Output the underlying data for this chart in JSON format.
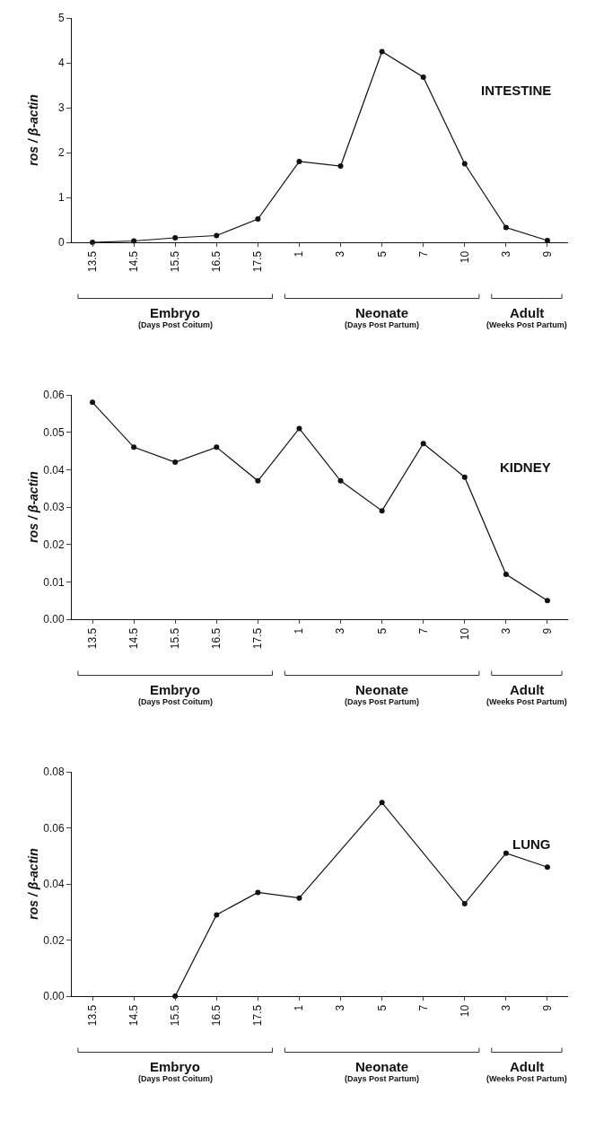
{
  "chart_data": [
    {
      "type": "line",
      "title": "INTESTINE",
      "ylabel": "ros / β-actin",
      "categories": [
        "13.5",
        "14.5",
        "15.5",
        "16.5",
        "17.5",
        "1",
        "3",
        "5",
        "7",
        "10",
        "3",
        "9"
      ],
      "series": [
        {
          "color": "#111111",
          "values": [
            0,
            0.03,
            0.1,
            0.15,
            0.52,
            1.8,
            1.7,
            4.25,
            3.68,
            1.75,
            0.33,
            0.04
          ]
        }
      ],
      "ylim": [
        0,
        5
      ],
      "yticks": [
        0,
        1,
        2,
        3,
        4,
        5
      ],
      "marker": "circle",
      "line_style": "solid",
      "annotations": [
        "Embryo",
        "(Days Post Coitum)",
        "Neonate",
        "(Days Post Partum)",
        "Adult",
        "(Weeks Post Partum)"
      ]
    },
    {
      "type": "line",
      "title": "KIDNEY",
      "ylabel": "ros / β-actin",
      "categories": [
        "13.5",
        "14.5",
        "15.5",
        "16.5",
        "17.5",
        "1",
        "3",
        "5",
        "7",
        "10",
        "3",
        "9"
      ],
      "series": [
        {
          "color": "#111111",
          "values": [
            0.058,
            0.046,
            0.042,
            0.046,
            0.037,
            0.051,
            0.037,
            0.029,
            0.047,
            0.038,
            0.012,
            0.005
          ]
        }
      ],
      "ylim": [
        0,
        0.06
      ],
      "yticks": [
        {
          "value": 0,
          "label": "0.00"
        },
        {
          "value": 0.01,
          "label": "0.01"
        },
        {
          "value": 0.02,
          "label": "0.02"
        },
        {
          "value": 0.03,
          "label": "0.03"
        },
        {
          "value": 0.04,
          "label": "0.04"
        },
        {
          "value": 0.05,
          "label": "0.05"
        },
        {
          "value": 0.06,
          "label": "0.06"
        }
      ],
      "marker": "circle",
      "line_style": "solid",
      "annotations": [
        "Embryo",
        "(Days Post Coitum)",
        "Neonate",
        "(Days Post Partum)",
        "Adult",
        "(Weeks Post Partum)"
      ]
    },
    {
      "type": "line",
      "title": "LUNG",
      "ylabel": "ros / β-actin",
      "categories": [
        "13.5",
        "14.5",
        "15.5",
        "16.5",
        "17.5",
        "1",
        "3",
        "5",
        "7",
        "10",
        "3",
        "9"
      ],
      "series": [
        {
          "color": "#111111",
          "values": [
            null,
            null,
            0,
            0.029,
            0.037,
            0.035,
            null,
            0.069,
            null,
            0.033,
            0.051,
            0.046
          ]
        }
      ],
      "ylim": [
        0,
        0.08
      ],
      "yticks": [
        {
          "value": 0,
          "label": "0.00"
        },
        {
          "value": 0.02,
          "label": "0.02"
        },
        {
          "value": 0.04,
          "label": "0.04"
        },
        {
          "value": 0.06,
          "label": "0.06"
        },
        {
          "value": 0.08,
          "label": "0.08"
        }
      ],
      "marker": "circle",
      "line_style": "solid",
      "annotations": [
        "Embryo",
        "(Days Post Coitum)",
        "Neonate",
        "(Days Post Partum)",
        "Adult",
        "(Weeks Post Partum)"
      ]
    }
  ]
}
